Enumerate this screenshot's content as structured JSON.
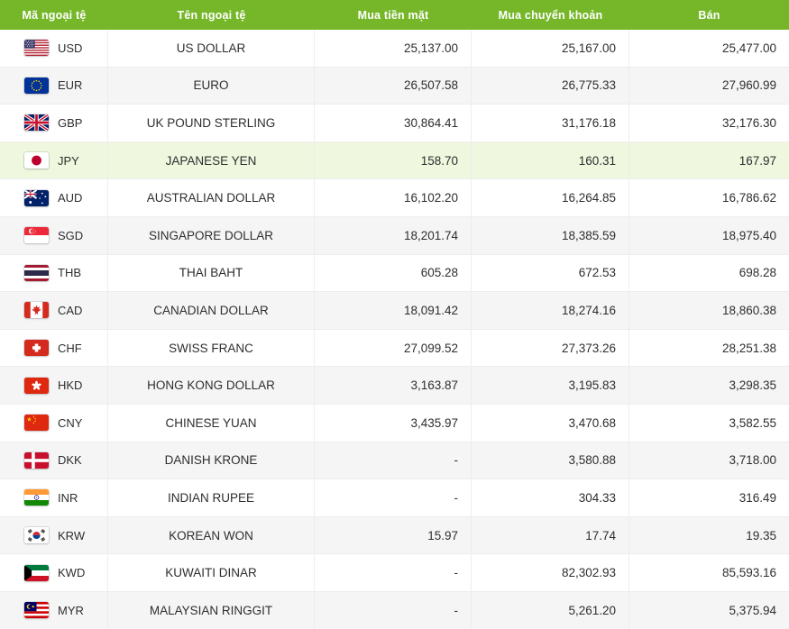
{
  "colors": {
    "header_bg": "#76b72a",
    "row_alt": "#f5f5f5",
    "highlight": "#eff7df",
    "text": "#2e2e2e",
    "border": "#ededed"
  },
  "table": {
    "columns": [
      {
        "key": "code",
        "label": "Mã ngoại tệ"
      },
      {
        "key": "name",
        "label": "Tên ngoại tệ"
      },
      {
        "key": "cash_buy",
        "label": "Mua tiền mặt"
      },
      {
        "key": "transfer_buy",
        "label": "Mua chuyển khoản"
      },
      {
        "key": "sell",
        "label": "Bán"
      }
    ],
    "rows": [
      {
        "flag": "us",
        "code": "USD",
        "name": "US DOLLAR",
        "cash_buy": "25,137.00",
        "transfer_buy": "25,167.00",
        "sell": "25,477.00",
        "highlight": false
      },
      {
        "flag": "eu",
        "code": "EUR",
        "name": "EURO",
        "cash_buy": "26,507.58",
        "transfer_buy": "26,775.33",
        "sell": "27,960.99",
        "highlight": false
      },
      {
        "flag": "gb",
        "code": "GBP",
        "name": "UK POUND STERLING",
        "cash_buy": "30,864.41",
        "transfer_buy": "31,176.18",
        "sell": "32,176.30",
        "highlight": false
      },
      {
        "flag": "jp",
        "code": "JPY",
        "name": "JAPANESE YEN",
        "cash_buy": "158.70",
        "transfer_buy": "160.31",
        "sell": "167.97",
        "highlight": true
      },
      {
        "flag": "au",
        "code": "AUD",
        "name": "AUSTRALIAN DOLLAR",
        "cash_buy": "16,102.20",
        "transfer_buy": "16,264.85",
        "sell": "16,786.62",
        "highlight": false
      },
      {
        "flag": "sg",
        "code": "SGD",
        "name": "SINGAPORE DOLLAR",
        "cash_buy": "18,201.74",
        "transfer_buy": "18,385.59",
        "sell": "18,975.40",
        "highlight": false
      },
      {
        "flag": "th",
        "code": "THB",
        "name": "THAI BAHT",
        "cash_buy": "605.28",
        "transfer_buy": "672.53",
        "sell": "698.28",
        "highlight": false
      },
      {
        "flag": "ca",
        "code": "CAD",
        "name": "CANADIAN DOLLAR",
        "cash_buy": "18,091.42",
        "transfer_buy": "18,274.16",
        "sell": "18,860.38",
        "highlight": false
      },
      {
        "flag": "ch",
        "code": "CHF",
        "name": "SWISS FRANC",
        "cash_buy": "27,099.52",
        "transfer_buy": "27,373.26",
        "sell": "28,251.38",
        "highlight": false
      },
      {
        "flag": "hk",
        "code": "HKD",
        "name": "HONG KONG DOLLAR",
        "cash_buy": "3,163.87",
        "transfer_buy": "3,195.83",
        "sell": "3,298.35",
        "highlight": false
      },
      {
        "flag": "cn",
        "code": "CNY",
        "name": "CHINESE YUAN",
        "cash_buy": "3,435.97",
        "transfer_buy": "3,470.68",
        "sell": "3,582.55",
        "highlight": false
      },
      {
        "flag": "dk",
        "code": "DKK",
        "name": "DANISH KRONE",
        "cash_buy": "-",
        "transfer_buy": "3,580.88",
        "sell": "3,718.00",
        "highlight": false
      },
      {
        "flag": "in",
        "code": "INR",
        "name": "INDIAN RUPEE",
        "cash_buy": "-",
        "transfer_buy": "304.33",
        "sell": "316.49",
        "highlight": false
      },
      {
        "flag": "kr",
        "code": "KRW",
        "name": "KOREAN WON",
        "cash_buy": "15.97",
        "transfer_buy": "17.74",
        "sell": "19.35",
        "highlight": false
      },
      {
        "flag": "kw",
        "code": "KWD",
        "name": "KUWAITI DINAR",
        "cash_buy": "-",
        "transfer_buy": "82,302.93",
        "sell": "85,593.16",
        "highlight": false
      },
      {
        "flag": "my",
        "code": "MYR",
        "name": "MALAYSIAN RINGGIT",
        "cash_buy": "-",
        "transfer_buy": "5,261.20",
        "sell": "5,375.94",
        "highlight": false
      }
    ]
  }
}
